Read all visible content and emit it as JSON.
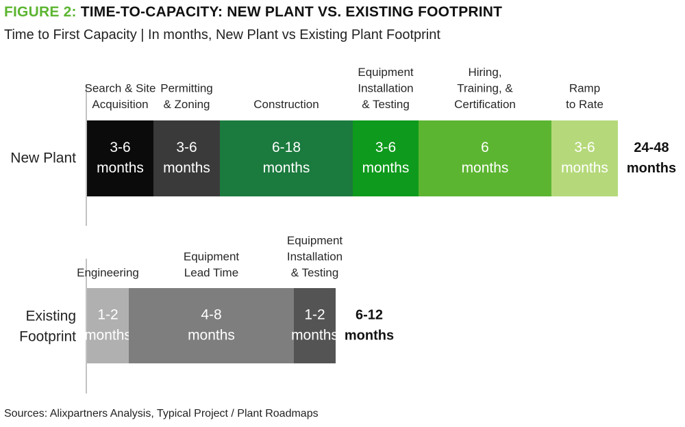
{
  "title_prefix": "FIGURE 2:",
  "title_main": "TIME-TO-CAPACITY: NEW PLANT VS. EXISTING FOOTPRINT",
  "subtitle": "Time to First Capacity | In months, New Plant vs Existing Plant Footprint",
  "source": "Sources: Alixpartners Analysis, Typical Project / Plant Roadmaps",
  "chart_data": {
    "type": "bar",
    "orientation": "horizontal-stacked",
    "rows": [
      {
        "label_lines": [
          "New Plant"
        ],
        "total_lines": [
          "24-48",
          "months"
        ],
        "segments": [
          {
            "phase_lines": [
              "Search & Site",
              "Acquisition"
            ],
            "value_lines": [
              "3-6",
              "months"
            ],
            "color": "#0b0b0b",
            "text_color": "#ffffff"
          },
          {
            "phase_lines": [
              "Permitting",
              "& Zoning"
            ],
            "value_lines": [
              "3-6",
              "months"
            ],
            "color": "#3a3a3a",
            "text_color": "#ffffff"
          },
          {
            "phase_lines": [
              "Construction"
            ],
            "value_lines": [
              "6-18",
              "months"
            ],
            "color": "#1b7a3e",
            "text_color": "#ffffff"
          },
          {
            "phase_lines": [
              "Equipment",
              "Installation",
              "& Testing"
            ],
            "value_lines": [
              "3-6",
              "months"
            ],
            "color": "#0e9a1c",
            "text_color": "#ffffff"
          },
          {
            "phase_lines": [
              "Hiring,",
              "Training, &",
              "Certification"
            ],
            "value_lines": [
              "6",
              "months"
            ],
            "color": "#5cb531",
            "text_color": "#ffffff"
          },
          {
            "phase_lines": [
              "Ramp",
              "to Rate"
            ],
            "value_lines": [
              "3-6",
              "months"
            ],
            "color": "#b5d97a",
            "text_color": "#ffffff"
          }
        ]
      },
      {
        "label_lines": [
          "Existing",
          "Footprint"
        ],
        "total_lines": [
          "6-12",
          "months"
        ],
        "segments": [
          {
            "phase_lines": [
              "Engineering"
            ],
            "value_lines": [
              "1-2",
              "months"
            ],
            "color": "#b0b0b0",
            "text_color": "#ffffff"
          },
          {
            "phase_lines": [
              "Equipment",
              "Lead Time"
            ],
            "value_lines": [
              "4-8",
              "months"
            ],
            "color": "#7e7e7e",
            "text_color": "#ffffff"
          },
          {
            "phase_lines": [
              "Equipment",
              "Installation",
              "& Testing"
            ],
            "value_lines": [
              "1-2",
              "months"
            ],
            "color": "#545454",
            "text_color": "#ffffff"
          }
        ]
      }
    ]
  }
}
